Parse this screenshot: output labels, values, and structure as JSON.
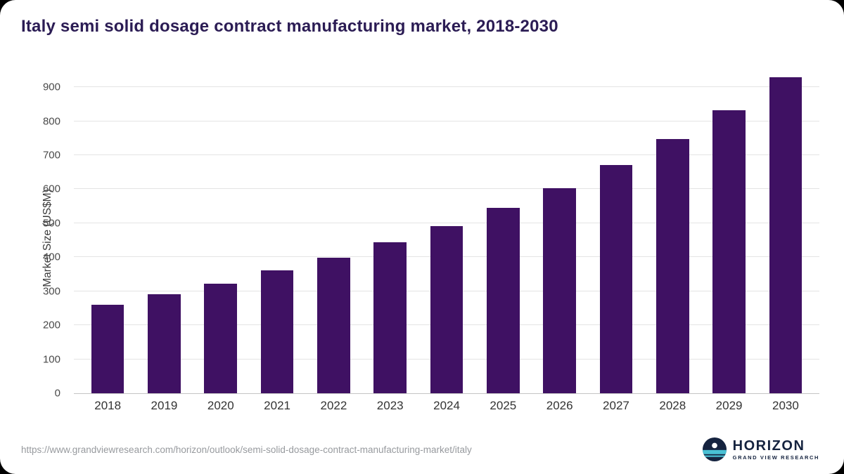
{
  "chart_data": {
    "type": "bar",
    "title": "Italy semi solid dosage contract manufacturing market, 2018-2030",
    "ylabel": "Market Size (US$M)",
    "categories": [
      "2018",
      "2019",
      "2020",
      "2021",
      "2022",
      "2023",
      "2024",
      "2025",
      "2026",
      "2027",
      "2028",
      "2029",
      "2030"
    ],
    "values": [
      260,
      291,
      322,
      361,
      398,
      444,
      492,
      546,
      604,
      671,
      748,
      833,
      929
    ],
    "ylim": [
      0,
      950
    ],
    "yticks": [
      0,
      100,
      200,
      300,
      400,
      500,
      600,
      700,
      800,
      900
    ],
    "bar_color": "#3f1163",
    "grid": true,
    "legend": false
  },
  "footer": {
    "source_url": "https://www.grandviewresearch.com/horizon/outlook/semi-solid-dosage-contract-manufacturing-market/italy",
    "logo": {
      "name": "HORIZON",
      "subtitle": "GRAND VIEW RESEARCH",
      "navy": "#15233f",
      "teal": "#49c0d4"
    }
  }
}
